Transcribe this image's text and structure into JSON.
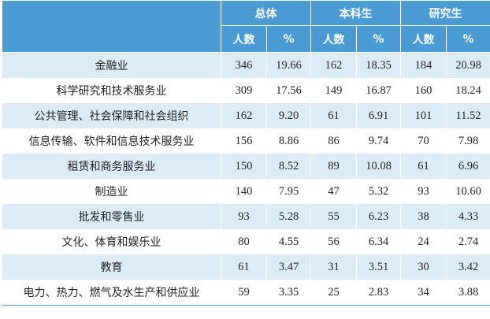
{
  "header": {
    "groups": [
      "总体",
      "本科生",
      "研究生"
    ],
    "sub": [
      "人数",
      "%",
      "人数",
      "%",
      "人数",
      "%"
    ]
  },
  "rows": [
    {
      "industry": "金融业",
      "values": [
        "346",
        "19.66",
        "162",
        "18.35",
        "184",
        "20.98"
      ]
    },
    {
      "industry": "科学研究和技术服务业",
      "values": [
        "309",
        "17.56",
        "149",
        "16.87",
        "160",
        "18.24"
      ]
    },
    {
      "industry": "公共管理、社会保障和社会组织",
      "values": [
        "162",
        "9.20",
        "61",
        "6.91",
        "101",
        "11.52"
      ]
    },
    {
      "industry": "信息传输、软件和信息技术服务业",
      "values": [
        "156",
        "8.86",
        "86",
        "9.74",
        "70",
        "7.98"
      ]
    },
    {
      "industry": "租赁和商务服务业",
      "values": [
        "150",
        "8.52",
        "89",
        "10.08",
        "61",
        "6.96"
      ]
    },
    {
      "industry": "制造业",
      "values": [
        "140",
        "7.95",
        "47",
        "5.32",
        "93",
        "10.60"
      ]
    },
    {
      "industry": "批发和零售业",
      "values": [
        "93",
        "5.28",
        "55",
        "6.23",
        "38",
        "4.33"
      ]
    },
    {
      "industry": "文化、体育和娱乐业",
      "values": [
        "80",
        "4.55",
        "56",
        "6.34",
        "24",
        "2.74"
      ]
    },
    {
      "industry": "教育",
      "values": [
        "61",
        "3.47",
        "31",
        "3.51",
        "30",
        "3.42"
      ]
    },
    {
      "industry": "电力、热力、燃气及水生产和供应业",
      "values": [
        "59",
        "3.35",
        "25",
        "2.83",
        "34",
        "3.88"
      ]
    }
  ]
}
